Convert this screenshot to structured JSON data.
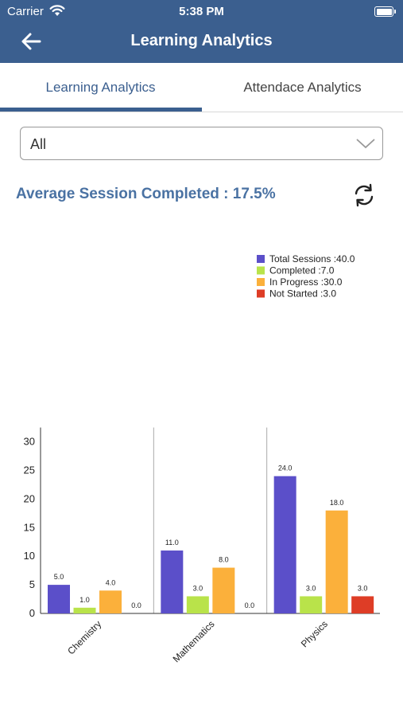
{
  "status_bar": {
    "carrier": "Carrier",
    "time": "5:38 PM"
  },
  "header": {
    "title": "Learning Analytics"
  },
  "tabs": [
    {
      "label": "Learning Analytics",
      "active": true
    },
    {
      "label": "Attendace Analytics",
      "active": false
    }
  ],
  "filter": {
    "selected": "All"
  },
  "summary": {
    "text": "Average Session Completed : 17.5%"
  },
  "colors": {
    "header": "#3b5f8f",
    "accent": "#4a72a3",
    "total": "#5b4fc9",
    "completed": "#b9e34a",
    "in_progress": "#fbb03b",
    "not_started": "#de3d26"
  },
  "chart_data": {
    "type": "bar",
    "categories": [
      "Chemistry",
      "Mathematics",
      "Physics"
    ],
    "series": [
      {
        "name": "Total Sessions",
        "values": [
          5.0,
          11.0,
          24.0
        ],
        "color": "#5b4fc9"
      },
      {
        "name": "Completed",
        "values": [
          1.0,
          3.0,
          3.0
        ],
        "color": "#b9e34a"
      },
      {
        "name": "In Progress",
        "values": [
          4.0,
          8.0,
          18.0
        ],
        "color": "#fbb03b"
      },
      {
        "name": "Not Started",
        "values": [
          0.0,
          0.0,
          3.0
        ],
        "color": "#de3d26"
      }
    ],
    "legend": [
      {
        "label": "Total Sessions :40.0",
        "color": "#5b4fc9"
      },
      {
        "label": "Completed :7.0",
        "color": "#b9e34a"
      },
      {
        "label": "In Progress :30.0",
        "color": "#fbb03b"
      },
      {
        "label": "Not Started :3.0",
        "color": "#de3d26"
      }
    ],
    "legend_position": "top-right",
    "yticks": [
      0,
      5,
      10,
      15,
      20,
      25,
      30
    ],
    "ylim": [
      0,
      32.5
    ],
    "grid": "vertical-category-separators"
  }
}
